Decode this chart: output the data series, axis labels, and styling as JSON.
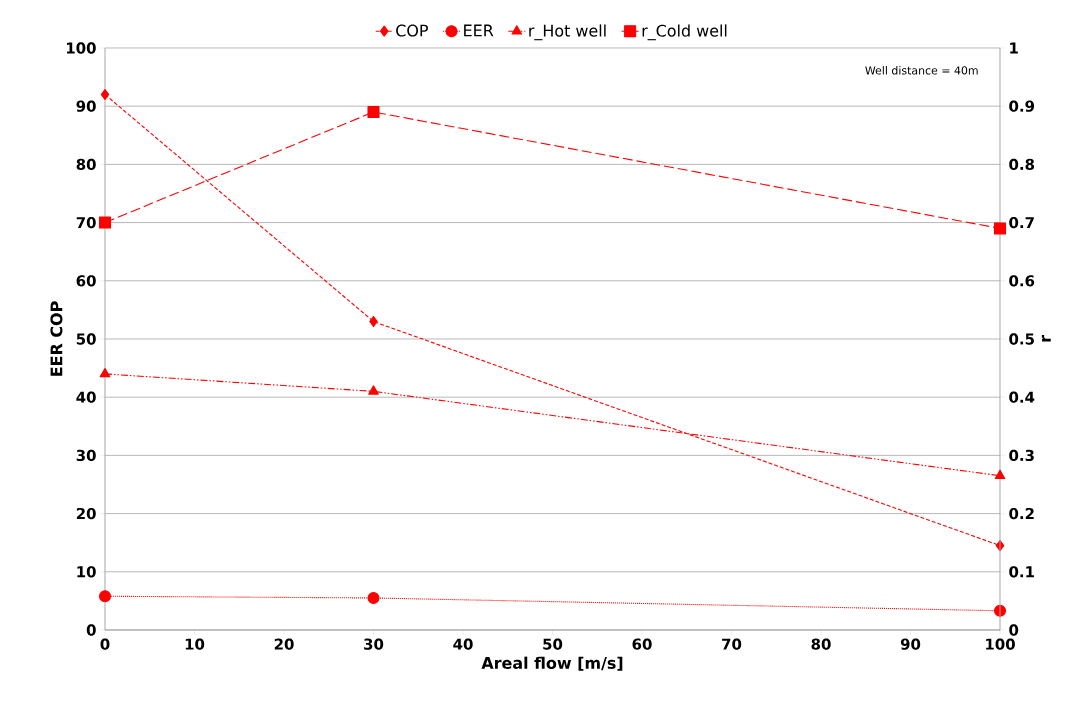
{
  "chart_data": {
    "type": "line",
    "xlabel": "Areal flow [m/s]",
    "ylabel": "EER COP",
    "y2label": "r",
    "x": [
      0,
      30,
      100
    ],
    "series": [
      {
        "name": "COP",
        "color": "#ff0000",
        "values": [
          92,
          53,
          14.5
        ],
        "marker": "diamond",
        "line_style": "dashed"
      },
      {
        "name": "EER",
        "color": "#ff0000",
        "values": [
          5.8,
          5.5,
          3.3
        ],
        "marker": "circle",
        "line_style": "dotted"
      },
      {
        "name": "r_Hot well",
        "color": "#ff0000",
        "values": [
          0.44,
          0.41,
          0.265
        ],
        "marker": "triangle",
        "line_style": "dashdot",
        "axis": "y2"
      },
      {
        "name": "r_Cold well",
        "color": "#ff0000",
        "values": [
          0.7,
          0.89,
          0.69
        ],
        "marker": "square",
        "line_style": "dashed",
        "axis": "y2"
      }
    ],
    "xlim": [
      0,
      100
    ],
    "xticks": [
      0,
      10,
      20,
      30,
      40,
      50,
      60,
      70,
      80,
      90,
      100
    ],
    "ylim": [
      0,
      100
    ],
    "yticks": [
      0,
      10,
      20,
      30,
      40,
      50,
      60,
      70,
      80,
      90,
      100
    ],
    "y2lim": [
      0,
      1
    ],
    "y2ticks": [
      0,
      0.1,
      0.2,
      0.3,
      0.4,
      0.5,
      0.6,
      0.7,
      0.8,
      0.9,
      1
    ],
    "grid": "y",
    "legend": "top",
    "annotations": [
      "Well distance = 40m"
    ]
  }
}
